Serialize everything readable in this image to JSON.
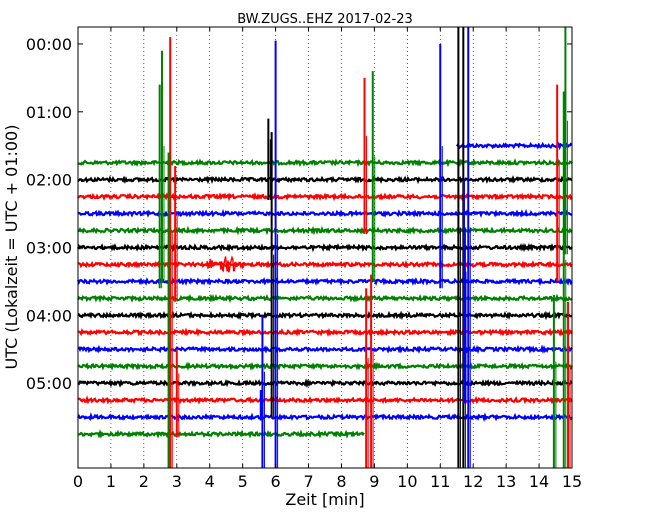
{
  "chart_data": {
    "type": "line",
    "title": "BW.ZUGS..EHZ 2017-02-23",
    "xlabel": "Zeit  [min]",
    "ylabel": "UTC (Lokalzeit = UTC + 01:00)",
    "xlim": [
      0,
      15
    ],
    "ylim_hours": [
      -0.25,
      6.25
    ],
    "x_ticks": [
      "0",
      "1",
      "2",
      "3",
      "4",
      "5",
      "6",
      "7",
      "8",
      "9",
      "10",
      "11",
      "12",
      "13",
      "14",
      "15"
    ],
    "y_ticks": [
      {
        "label": "00:00",
        "hour": 0
      },
      {
        "label": "01:00",
        "hour": 1
      },
      {
        "label": "02:00",
        "hour": 2
      },
      {
        "label": "03:00",
        "hour": 3
      },
      {
        "label": "04:00",
        "hour": 4
      },
      {
        "label": "05:00",
        "hour": 5
      }
    ],
    "grid": {
      "x": true,
      "y": false,
      "style": "dotted"
    },
    "color_cycle": [
      "#008000",
      "#000000",
      "#ff0000",
      "#0000ff"
    ],
    "trace_interval_hours": 0.25,
    "traces": [
      {
        "offset_hour": 0.0,
        "color": "#0000ff",
        "start_min": 11.5,
        "end_min": 15,
        "level": 1.5
      },
      {
        "offset_hour": 1.75,
        "color": "#008000"
      },
      {
        "offset_hour": 2.0,
        "color": "#000000"
      },
      {
        "offset_hour": 2.25,
        "color": "#ff0000"
      },
      {
        "offset_hour": 2.5,
        "color": "#0000ff"
      },
      {
        "offset_hour": 2.75,
        "color": "#008000"
      },
      {
        "offset_hour": 3.0,
        "color": "#000000"
      },
      {
        "offset_hour": 3.25,
        "color": "#ff0000"
      },
      {
        "offset_hour": 3.5,
        "color": "#0000ff"
      },
      {
        "offset_hour": 3.75,
        "color": "#008000"
      },
      {
        "offset_hour": 4.0,
        "color": "#000000"
      },
      {
        "offset_hour": 4.25,
        "color": "#ff0000"
      },
      {
        "offset_hour": 4.5,
        "color": "#0000ff"
      },
      {
        "offset_hour": 4.75,
        "color": "#008000"
      },
      {
        "offset_hour": 5.0,
        "color": "#000000"
      },
      {
        "offset_hour": 5.25,
        "color": "#ff0000"
      },
      {
        "offset_hour": 5.5,
        "color": "#0000ff"
      },
      {
        "offset_hour": 5.75,
        "color": "#008000",
        "end_min": 8.7
      }
    ],
    "spikes": [
      {
        "x_min": 2.48,
        "from_hour": 0.6,
        "to_hour": 3.6,
        "color": "#008000"
      },
      {
        "x_min": 2.55,
        "from_hour": 0.1,
        "to_hour": 3.5,
        "color": "#008000"
      },
      {
        "x_min": 2.75,
        "from_hour": 1.6,
        "to_hour": 6.25,
        "color": "#008000"
      },
      {
        "x_min": 2.8,
        "from_hour": -0.1,
        "to_hour": 6.25,
        "color": "#ff0000"
      },
      {
        "x_min": 2.95,
        "from_hour": 1.8,
        "to_hour": 3.8,
        "color": "#ff0000"
      },
      {
        "x_min": 3.0,
        "from_hour": 4.5,
        "to_hour": 5.8,
        "color": "#ff0000"
      },
      {
        "x_min": 5.6,
        "from_hour": 4.0,
        "to_hour": 6.25,
        "color": "#0000ff"
      },
      {
        "x_min": 5.55,
        "from_hour": 5.1,
        "to_hour": 5.55,
        "color": "#0000ff"
      },
      {
        "x_min": 5.78,
        "from_hour": 1.1,
        "to_hour": 2.3,
        "color": "#000000"
      },
      {
        "x_min": 5.88,
        "from_hour": 1.3,
        "to_hour": 5.5,
        "color": "#000000"
      },
      {
        "x_min": 6.0,
        "from_hour": -0.05,
        "to_hour": 6.25,
        "color": "#0000ff"
      },
      {
        "x_min": 8.7,
        "from_hour": 0.5,
        "to_hour": 2.8,
        "color": "#ff0000"
      },
      {
        "x_min": 8.75,
        "from_hour": 3.6,
        "to_hour": 6.25,
        "color": "#ff0000"
      },
      {
        "x_min": 8.9,
        "from_hour": 3.4,
        "to_hour": 6.25,
        "color": "#ff0000"
      },
      {
        "x_min": 8.95,
        "from_hour": 0.4,
        "to_hour": 3.5,
        "color": "#008000"
      },
      {
        "x_min": 11.0,
        "from_hour": 0.0,
        "to_hour": 3.6,
        "color": "#0000ff"
      },
      {
        "x_min": 11.55,
        "from_hour": -0.25,
        "to_hour": 6.25,
        "color": "#000000"
      },
      {
        "x_min": 11.7,
        "from_hour": -0.25,
        "to_hour": 6.25,
        "color": "#000000"
      },
      {
        "x_min": 11.72,
        "from_hour": 2.0,
        "to_hour": 5.3,
        "color": "#0000ff"
      },
      {
        "x_min": 11.85,
        "from_hour": -0.25,
        "to_hour": 6.25,
        "color": "#0000ff"
      },
      {
        "x_min": 14.45,
        "from_hour": 3.7,
        "to_hour": 6.25,
        "color": "#008000"
      },
      {
        "x_min": 14.55,
        "from_hour": 0.6,
        "to_hour": 3.5,
        "color": "#ff0000"
      },
      {
        "x_min": 14.75,
        "from_hour": 0.7,
        "to_hour": 6.25,
        "color": "#008000"
      },
      {
        "x_min": 14.8,
        "from_hour": -0.25,
        "to_hour": 3.1,
        "color": "#008000"
      },
      {
        "x_min": 14.88,
        "from_hour": 3.8,
        "to_hour": 6.25,
        "color": "#ff0000"
      }
    ],
    "bursts": [
      {
        "x_min_start": 3.9,
        "x_min_end": 5.1,
        "hour": 3.25,
        "amplitude_hours": 0.12,
        "color": "#ff0000"
      }
    ]
  }
}
